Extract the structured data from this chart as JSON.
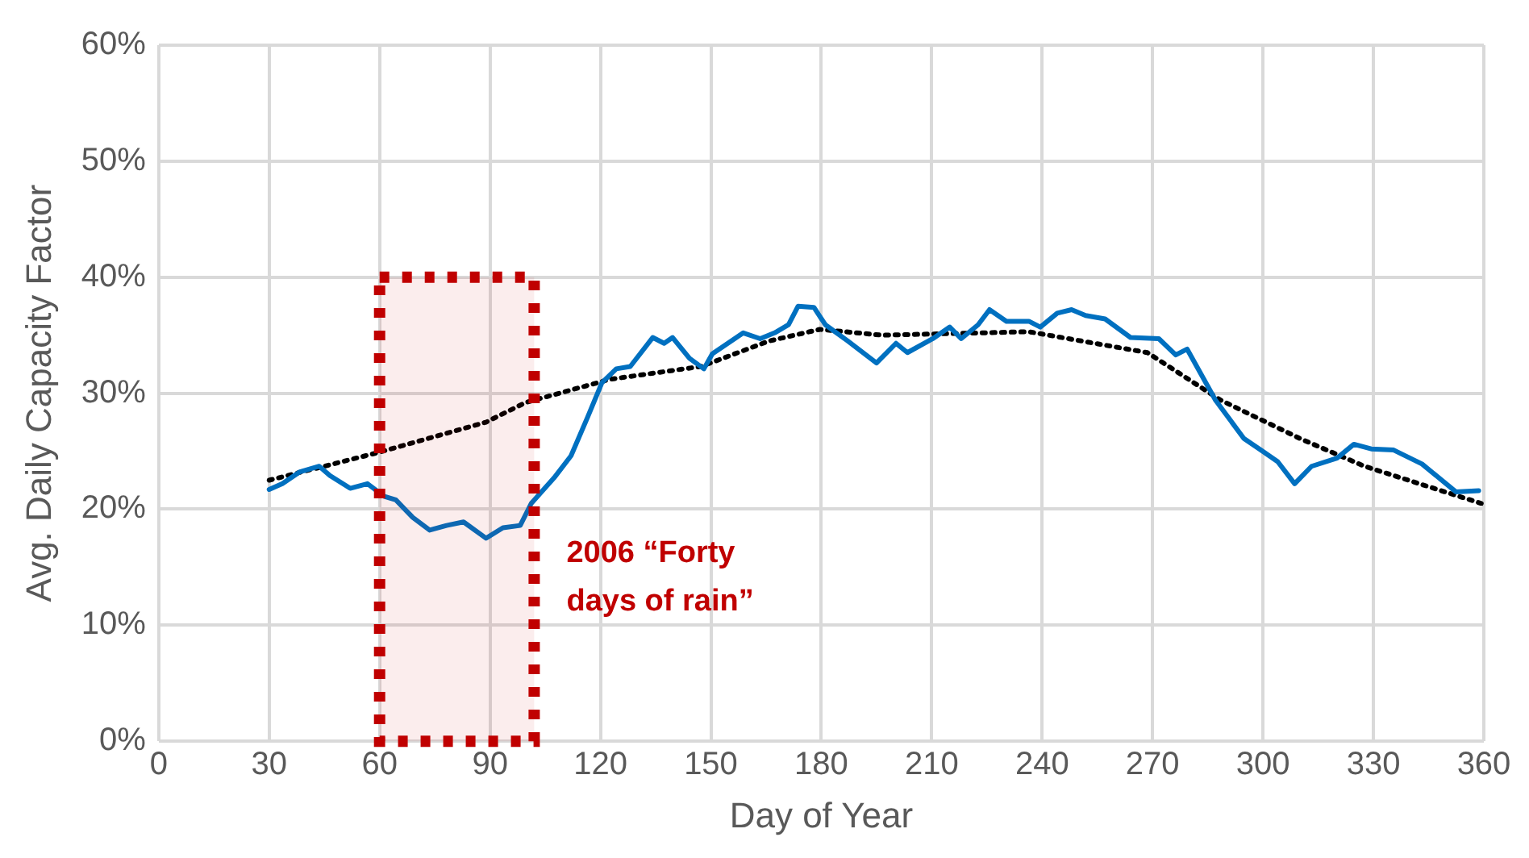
{
  "chart_data": {
    "type": "line",
    "xlabel": "Day of Year",
    "ylabel": "Avg. Daily Capacity Factor",
    "xlim": [
      0,
      360
    ],
    "xticks": [
      0,
      30,
      60,
      90,
      120,
      150,
      180,
      210,
      240,
      270,
      300,
      330,
      360
    ],
    "ylim": [
      0,
      60
    ],
    "yticks": [
      {
        "value": 0,
        "label": "0%"
      },
      {
        "value": 10,
        "label": "10%"
      },
      {
        "value": 20,
        "label": "20%"
      },
      {
        "value": 30,
        "label": "30%"
      },
      {
        "value": 40,
        "label": "40%"
      },
      {
        "value": 50,
        "label": "50%"
      },
      {
        "value": 60,
        "label": "60%"
      }
    ],
    "grid": true,
    "legend": false,
    "marker": "none",
    "series": [
      {
        "color": "#0070c0",
        "line_style": "solid",
        "x": [
          30,
          33.6,
          38.2,
          43.6,
          46.5,
          52,
          56.7,
          61.3,
          64.4,
          69,
          73.6,
          78.2,
          82.8,
          88.9,
          93.5,
          98.2,
          101.2,
          107.4,
          112,
          116.6,
          120.4,
          124.3,
          128.1,
          134.2,
          137.3,
          139.6,
          144.2,
          148.1,
          150.4,
          158.8,
          163.4,
          167.3,
          171.1,
          173.7,
          178,
          181.1,
          187.2,
          195,
          200.3,
          203.4,
          210.3,
          214.9,
          218,
          222.6,
          225.7,
          230.3,
          236.4,
          239.5,
          244.1,
          248,
          251.8,
          257.1,
          264,
          271.7,
          276.3,
          279.4,
          287.1,
          294.8,
          299.4,
          304,
          308.6,
          313.2,
          320.1,
          324.7,
          329.4,
          335.5,
          343.2,
          352.4,
          358.6
        ],
        "values": [
          21.7,
          22.2,
          23.2,
          23.7,
          22.9,
          21.8,
          22.2,
          21.1,
          20.8,
          19.3,
          18.2,
          18.6,
          18.9,
          17.5,
          18.4,
          18.6,
          20.5,
          22.7,
          24.6,
          28.0,
          30.9,
          32.1,
          32.3,
          34.8,
          34.3,
          34.8,
          33.0,
          32.1,
          33.4,
          35.2,
          34.7,
          35.2,
          35.9,
          37.5,
          37.4,
          35.9,
          34.5,
          32.6,
          34.3,
          33.5,
          34.7,
          35.7,
          34.7,
          35.9,
          37.2,
          36.2,
          36.2,
          35.7,
          36.9,
          37.2,
          36.7,
          36.4,
          34.8,
          34.7,
          33.3,
          33.8,
          29.4,
          26.1,
          25.1,
          24.1,
          22.2,
          23.7,
          24.4,
          25.6,
          25.2,
          25.1,
          23.9,
          21.5,
          21.6
        ]
      },
      {
        "color": "#000000",
        "line_style": "dotted",
        "x": [
          30,
          59.8,
          88.9,
          99.7,
          122.6,
          147.3,
          165.8,
          179.6,
          196.5,
          236.4,
          268.6,
          288.5,
          310,
          327.6,
          359.3
        ],
        "values": [
          22.5,
          24.9,
          27.5,
          29.2,
          31.2,
          32.3,
          34.5,
          35.5,
          35.0,
          35.3,
          33.5,
          29.4,
          26.1,
          23.7,
          20.5
        ]
      }
    ],
    "bands": [
      {
        "axis": "x",
        "from": 60,
        "to": 102,
        "color": "#c00000",
        "label": "2006 “Forty days of rain”"
      }
    ]
  }
}
